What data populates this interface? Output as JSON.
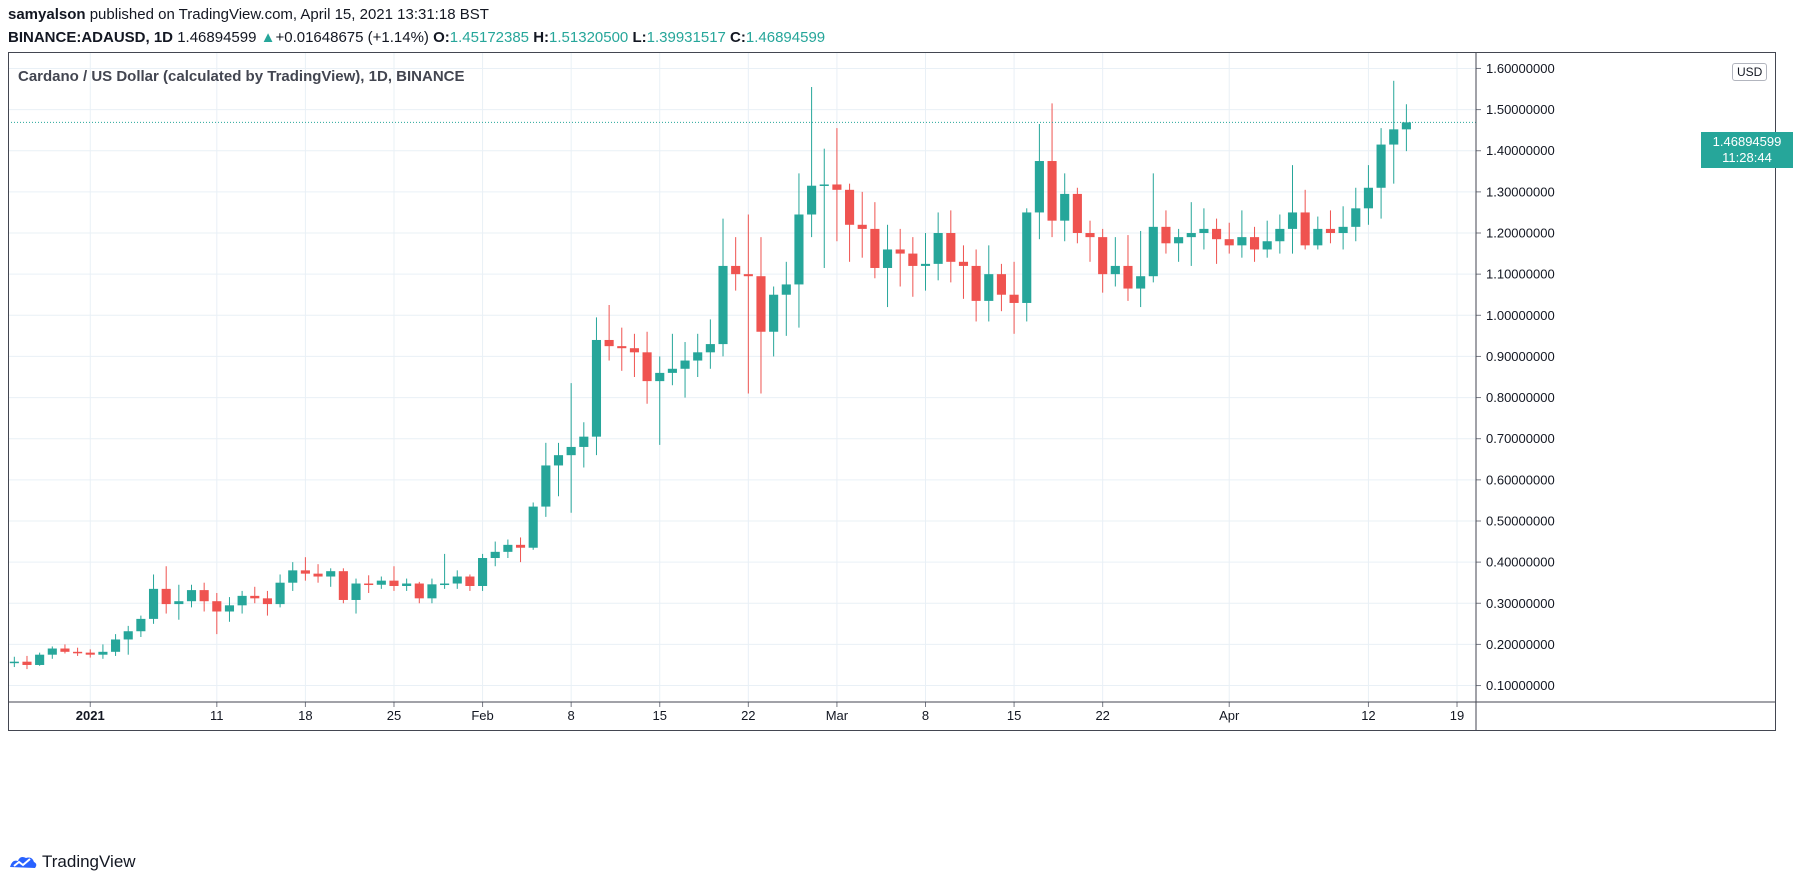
{
  "header": {
    "author": "samyalson",
    "published_text": " published on TradingView.com, April 15, 2021 13:31:18 BST",
    "symbol": "BINANCE:ADAUSD, 1D",
    "last_price": "1.46894599",
    "change_arrow": "▲",
    "change": "+0.01648675 (+1.14%)",
    "o_label": "O:",
    "o_value": "1.45172385",
    "h_label": "H:",
    "h_value": "1.51320500",
    "l_label": "L:",
    "l_value": "1.39931517",
    "c_label": "C:",
    "c_value": "1.46894599"
  },
  "chart_title": "Cardano / US Dollar (calculated by TradingView), 1D, BINANCE",
  "currency": "USD",
  "price_tag": {
    "price": "1.46894599",
    "countdown": "11:28:44"
  },
  "footer": {
    "brand": "TradingView",
    "icon": "tradingview-logo-icon"
  },
  "colors": {
    "up": "#26a69a",
    "down": "#ef5350",
    "grid": "#e9f0f6",
    "axis": "#131722"
  },
  "chart_data": {
    "type": "candlestick",
    "title": "Cardano / US Dollar (calculated by TradingView), 1D, BINANCE",
    "ylim": [
      0.06,
      1.64
    ],
    "y_ticks": [
      "0.10000000",
      "0.20000000",
      "0.30000000",
      "0.40000000",
      "0.50000000",
      "0.60000000",
      "0.70000000",
      "0.80000000",
      "0.90000000",
      "1.00000000",
      "1.10000000",
      "1.20000000",
      "1.30000000",
      "1.40000000",
      "1.50000000",
      "1.60000000"
    ],
    "x_ticks": [
      {
        "label": "2021",
        "date": "2021-01-01",
        "bold": true
      },
      {
        "label": "11",
        "date": "2021-01-11"
      },
      {
        "label": "18",
        "date": "2021-01-18"
      },
      {
        "label": "25",
        "date": "2021-01-25"
      },
      {
        "label": "Feb",
        "date": "2021-02-01"
      },
      {
        "label": "8",
        "date": "2021-02-08"
      },
      {
        "label": "15",
        "date": "2021-02-15"
      },
      {
        "label": "22",
        "date": "2021-02-22"
      },
      {
        "label": "Mar",
        "date": "2021-03-01"
      },
      {
        "label": "8",
        "date": "2021-03-08"
      },
      {
        "label": "15",
        "date": "2021-03-15"
      },
      {
        "label": "22",
        "date": "2021-03-22"
      },
      {
        "label": "Apr",
        "date": "2021-04-01"
      },
      {
        "label": "12",
        "date": "2021-04-12"
      },
      {
        "label": "19",
        "date": "2021-04-19"
      }
    ],
    "x_range": [
      "2020-12-26",
      "2021-04-20"
    ],
    "last_close": 1.46894599,
    "ohlc": [
      [
        "2020-12-26",
        0.156,
        0.17,
        0.145,
        0.158
      ],
      [
        "2020-12-27",
        0.158,
        0.172,
        0.14,
        0.15
      ],
      [
        "2020-12-28",
        0.15,
        0.18,
        0.148,
        0.175
      ],
      [
        "2020-12-29",
        0.175,
        0.195,
        0.165,
        0.19
      ],
      [
        "2020-12-30",
        0.19,
        0.2,
        0.178,
        0.182
      ],
      [
        "2020-12-31",
        0.182,
        0.192,
        0.172,
        0.18
      ],
      [
        "2021-01-01",
        0.18,
        0.188,
        0.168,
        0.175
      ],
      [
        "2021-01-02",
        0.175,
        0.2,
        0.165,
        0.182
      ],
      [
        "2021-01-03",
        0.182,
        0.225,
        0.172,
        0.212
      ],
      [
        "2021-01-04",
        0.212,
        0.245,
        0.175,
        0.232
      ],
      [
        "2021-01-05",
        0.232,
        0.27,
        0.218,
        0.262
      ],
      [
        "2021-01-06",
        0.262,
        0.37,
        0.25,
        0.335
      ],
      [
        "2021-01-07",
        0.335,
        0.39,
        0.275,
        0.298
      ],
      [
        "2021-01-08",
        0.298,
        0.345,
        0.26,
        0.305
      ],
      [
        "2021-01-09",
        0.305,
        0.345,
        0.29,
        0.332
      ],
      [
        "2021-01-10",
        0.332,
        0.35,
        0.28,
        0.305
      ],
      [
        "2021-01-11",
        0.305,
        0.325,
        0.225,
        0.28
      ],
      [
        "2021-01-12",
        0.28,
        0.315,
        0.255,
        0.295
      ],
      [
        "2021-01-13",
        0.295,
        0.33,
        0.275,
        0.318
      ],
      [
        "2021-01-14",
        0.318,
        0.34,
        0.3,
        0.312
      ],
      [
        "2021-01-15",
        0.312,
        0.33,
        0.27,
        0.298
      ],
      [
        "2021-01-16",
        0.298,
        0.37,
        0.29,
        0.35
      ],
      [
        "2021-01-17",
        0.35,
        0.4,
        0.33,
        0.38
      ],
      [
        "2021-01-18",
        0.38,
        0.412,
        0.355,
        0.372
      ],
      [
        "2021-01-19",
        0.372,
        0.395,
        0.35,
        0.365
      ],
      [
        "2021-01-20",
        0.365,
        0.385,
        0.34,
        0.378
      ],
      [
        "2021-01-21",
        0.378,
        0.385,
        0.3,
        0.308
      ],
      [
        "2021-01-22",
        0.308,
        0.36,
        0.275,
        0.348
      ],
      [
        "2021-01-23",
        0.348,
        0.368,
        0.325,
        0.345
      ],
      [
        "2021-01-24",
        0.345,
        0.365,
        0.335,
        0.355
      ],
      [
        "2021-01-25",
        0.355,
        0.39,
        0.33,
        0.342
      ],
      [
        "2021-01-26",
        0.342,
        0.36,
        0.33,
        0.348
      ],
      [
        "2021-01-27",
        0.348,
        0.352,
        0.3,
        0.312
      ],
      [
        "2021-01-28",
        0.312,
        0.36,
        0.3,
        0.346
      ],
      [
        "2021-01-29",
        0.346,
        0.42,
        0.335,
        0.348
      ],
      [
        "2021-01-30",
        0.348,
        0.38,
        0.335,
        0.365
      ],
      [
        "2021-01-31",
        0.365,
        0.37,
        0.33,
        0.342
      ],
      [
        "2021-02-01",
        0.342,
        0.42,
        0.33,
        0.41
      ],
      [
        "2021-02-02",
        0.41,
        0.45,
        0.39,
        0.425
      ],
      [
        "2021-02-03",
        0.425,
        0.455,
        0.41,
        0.442
      ],
      [
        "2021-02-04",
        0.442,
        0.46,
        0.4,
        0.435
      ],
      [
        "2021-02-05",
        0.435,
        0.545,
        0.43,
        0.535
      ],
      [
        "2021-02-06",
        0.535,
        0.69,
        0.51,
        0.635
      ],
      [
        "2021-02-07",
        0.635,
        0.69,
        0.56,
        0.66
      ],
      [
        "2021-02-08",
        0.66,
        0.835,
        0.52,
        0.68
      ],
      [
        "2021-02-09",
        0.68,
        0.74,
        0.63,
        0.705
      ],
      [
        "2021-02-10",
        0.705,
        0.995,
        0.66,
        0.94
      ],
      [
        "2021-02-11",
        0.94,
        1.025,
        0.89,
        0.925
      ],
      [
        "2021-02-12",
        0.925,
        0.97,
        0.865,
        0.92
      ],
      [
        "2021-02-13",
        0.92,
        0.955,
        0.85,
        0.91
      ],
      [
        "2021-02-14",
        0.91,
        0.96,
        0.785,
        0.84
      ],
      [
        "2021-02-15",
        0.84,
        0.9,
        0.685,
        0.86
      ],
      [
        "2021-02-16",
        0.86,
        0.955,
        0.83,
        0.87
      ],
      [
        "2021-02-17",
        0.87,
        0.935,
        0.8,
        0.89
      ],
      [
        "2021-02-18",
        0.89,
        0.955,
        0.85,
        0.91
      ],
      [
        "2021-02-19",
        0.91,
        0.99,
        0.87,
        0.93
      ],
      [
        "2021-02-20",
        0.93,
        1.235,
        0.9,
        1.12
      ],
      [
        "2021-02-21",
        1.12,
        1.19,
        1.06,
        1.1
      ],
      [
        "2021-02-22",
        1.1,
        1.245,
        0.81,
        1.095
      ],
      [
        "2021-02-23",
        1.095,
        1.19,
        0.81,
        0.96
      ],
      [
        "2021-02-24",
        0.96,
        1.07,
        0.9,
        1.05
      ],
      [
        "2021-02-25",
        1.05,
        1.13,
        0.95,
        1.075
      ],
      [
        "2021-02-26",
        1.075,
        1.345,
        0.97,
        1.245
      ],
      [
        "2021-02-27",
        1.245,
        1.555,
        1.19,
        1.315
      ],
      [
        "2021-02-28",
        1.315,
        1.405,
        1.115,
        1.318
      ],
      [
        "2021-03-01",
        1.318,
        1.455,
        1.18,
        1.305
      ],
      [
        "2021-03-02",
        1.305,
        1.32,
        1.13,
        1.22
      ],
      [
        "2021-03-03",
        1.22,
        1.3,
        1.14,
        1.21
      ],
      [
        "2021-03-04",
        1.21,
        1.275,
        1.09,
        1.115
      ],
      [
        "2021-03-05",
        1.115,
        1.22,
        1.02,
        1.16
      ],
      [
        "2021-03-06",
        1.16,
        1.21,
        1.07,
        1.15
      ],
      [
        "2021-03-07",
        1.15,
        1.19,
        1.045,
        1.12
      ],
      [
        "2021-03-08",
        1.12,
        1.2,
        1.06,
        1.125
      ],
      [
        "2021-03-09",
        1.125,
        1.25,
        1.085,
        1.2
      ],
      [
        "2021-03-10",
        1.2,
        1.255,
        1.08,
        1.13
      ],
      [
        "2021-03-11",
        1.13,
        1.17,
        1.04,
        1.12
      ],
      [
        "2021-03-12",
        1.12,
        1.16,
        0.985,
        1.035
      ],
      [
        "2021-03-13",
        1.035,
        1.17,
        0.985,
        1.1
      ],
      [
        "2021-03-14",
        1.1,
        1.125,
        1.01,
        1.05
      ],
      [
        "2021-03-15",
        1.05,
        1.13,
        0.955,
        1.03
      ],
      [
        "2021-03-16",
        1.03,
        1.26,
        0.985,
        1.25
      ],
      [
        "2021-03-17",
        1.25,
        1.465,
        1.185,
        1.375
      ],
      [
        "2021-03-18",
        1.375,
        1.515,
        1.19,
        1.23
      ],
      [
        "2021-03-19",
        1.23,
        1.345,
        1.18,
        1.295
      ],
      [
        "2021-03-20",
        1.295,
        1.31,
        1.175,
        1.2
      ],
      [
        "2021-03-21",
        1.2,
        1.23,
        1.13,
        1.19
      ],
      [
        "2021-03-22",
        1.19,
        1.21,
        1.055,
        1.1
      ],
      [
        "2021-03-23",
        1.1,
        1.19,
        1.07,
        1.12
      ],
      [
        "2021-03-24",
        1.12,
        1.195,
        1.035,
        1.065
      ],
      [
        "2021-03-25",
        1.065,
        1.205,
        1.02,
        1.095
      ],
      [
        "2021-03-26",
        1.095,
        1.345,
        1.08,
        1.215
      ],
      [
        "2021-03-27",
        1.215,
        1.255,
        1.15,
        1.175
      ],
      [
        "2021-03-28",
        1.175,
        1.21,
        1.13,
        1.19
      ],
      [
        "2021-03-29",
        1.19,
        1.275,
        1.12,
        1.2
      ],
      [
        "2021-03-30",
        1.2,
        1.26,
        1.16,
        1.21
      ],
      [
        "2021-03-31",
        1.21,
        1.235,
        1.125,
        1.185
      ],
      [
        "2021-04-01",
        1.185,
        1.225,
        1.15,
        1.17
      ],
      [
        "2021-04-02",
        1.17,
        1.255,
        1.14,
        1.19
      ],
      [
        "2021-04-03",
        1.19,
        1.215,
        1.13,
        1.16
      ],
      [
        "2021-04-04",
        1.16,
        1.23,
        1.14,
        1.18
      ],
      [
        "2021-04-05",
        1.18,
        1.245,
        1.15,
        1.21
      ],
      [
        "2021-04-06",
        1.21,
        1.365,
        1.15,
        1.25
      ],
      [
        "2021-04-07",
        1.25,
        1.305,
        1.16,
        1.17
      ],
      [
        "2021-04-08",
        1.17,
        1.24,
        1.16,
        1.21
      ],
      [
        "2021-04-09",
        1.21,
        1.255,
        1.175,
        1.2
      ],
      [
        "2021-04-10",
        1.2,
        1.265,
        1.16,
        1.215
      ],
      [
        "2021-04-11",
        1.215,
        1.31,
        1.18,
        1.26
      ],
      [
        "2021-04-12",
        1.26,
        1.365,
        1.22,
        1.31
      ],
      [
        "2021-04-13",
        1.31,
        1.455,
        1.235,
        1.415
      ],
      [
        "2021-04-14",
        1.415,
        1.57,
        1.32,
        1.452
      ],
      [
        "2021-04-15",
        1.452,
        1.513,
        1.399,
        1.469
      ]
    ]
  }
}
